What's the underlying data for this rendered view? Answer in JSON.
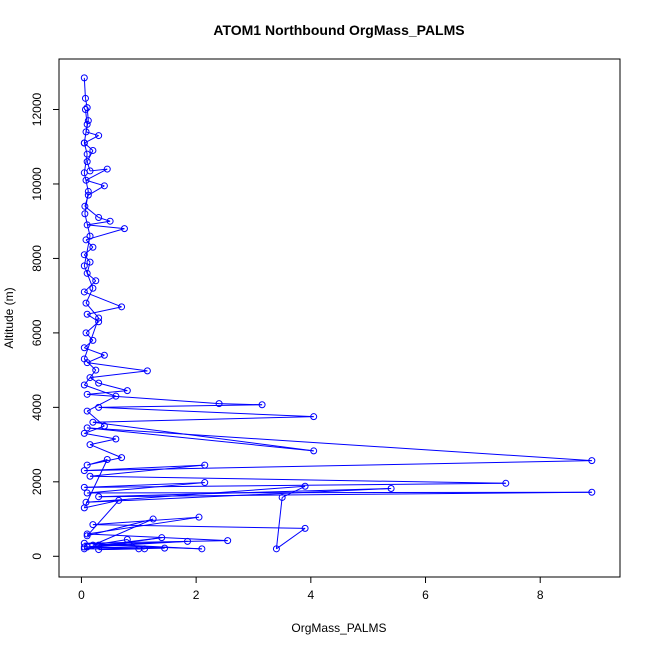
{
  "chart_data": {
    "type": "line",
    "title": "ATOM1 Northbound OrgMass_PALMS",
    "xlabel": "OrgMass_PALMS",
    "ylabel": "Altitude (m)",
    "xlim": [
      0,
      9
    ],
    "ylim": [
      0,
      12800
    ],
    "xticks": [
      0,
      2,
      4,
      6,
      8
    ],
    "yticks": [
      0,
      2000,
      4000,
      6000,
      8000,
      10000,
      12000
    ],
    "grid": false,
    "legend": "none",
    "series_color": "#0000ff",
    "marker": "open-circle",
    "series": [
      {
        "values": [
          [
            0.05,
            12850
          ],
          [
            0.07,
            12300
          ],
          [
            0.1,
            12050
          ],
          [
            0.12,
            11700
          ],
          [
            0.08,
            11400
          ],
          [
            0.3,
            11300
          ],
          [
            0.05,
            11100
          ],
          [
            0.2,
            10900
          ],
          [
            0.1,
            10600
          ],
          [
            0.15,
            10350
          ],
          [
            0.45,
            10400
          ],
          [
            0.08,
            10100
          ],
          [
            0.4,
            9950
          ],
          [
            0.12,
            9700
          ],
          [
            0.06,
            9400
          ],
          [
            0.3,
            9100
          ],
          [
            0.5,
            9000
          ],
          [
            0.1,
            8900
          ],
          [
            0.75,
            8800
          ],
          [
            0.08,
            8500
          ],
          [
            0.2,
            8300
          ],
          [
            0.05,
            8100
          ],
          [
            0.15,
            7900
          ],
          [
            0.1,
            7600
          ],
          [
            0.25,
            7400
          ],
          [
            0.05,
            7100
          ],
          [
            0.7,
            6700
          ],
          [
            0.1,
            6500
          ],
          [
            0.3,
            6300
          ],
          [
            0.08,
            6000
          ],
          [
            0.2,
            5800
          ],
          [
            0.05,
            5600
          ],
          [
            0.4,
            5400
          ],
          [
            0.1,
            5200
          ],
          [
            1.15,
            4980
          ],
          [
            0.15,
            4800
          ],
          [
            0.3,
            4650
          ],
          [
            0.8,
            4450
          ],
          [
            0.1,
            4350
          ],
          [
            2.4,
            4100
          ],
          [
            3.15,
            4070
          ],
          [
            0.3,
            4000
          ],
          [
            4.05,
            3750
          ],
          [
            0.2,
            3600
          ],
          [
            4.05,
            2830
          ],
          [
            0.1,
            3450
          ],
          [
            8.9,
            2570
          ],
          [
            0.05,
            2300
          ],
          [
            2.15,
            2450
          ],
          [
            0.15,
            2150
          ],
          [
            7.4,
            1960
          ],
          [
            0.05,
            1850
          ],
          [
            2.15,
            1980
          ],
          [
            0.1,
            1700
          ],
          [
            8.9,
            1720
          ],
          [
            0.3,
            1600
          ],
          [
            5.4,
            1820
          ],
          [
            0.08,
            1450
          ],
          [
            3.9,
            1880
          ],
          [
            3.5,
            1580
          ],
          [
            3.4,
            200
          ],
          [
            3.9,
            750
          ],
          [
            0.2,
            850
          ],
          [
            2.05,
            1050
          ],
          [
            0.1,
            600
          ],
          [
            2.55,
            420
          ],
          [
            0.05,
            350
          ],
          [
            2.1,
            200
          ],
          [
            0.3,
            300
          ],
          [
            1.85,
            400
          ],
          [
            0.1,
            250
          ],
          [
            1.4,
            500
          ],
          [
            0.05,
            200
          ],
          [
            1.1,
            200
          ],
          [
            0.3,
            180
          ],
          [
            1.45,
            220
          ],
          [
            0.05,
            250
          ],
          [
            1.0,
            200
          ],
          [
            0.8,
            450
          ],
          [
            0.2,
            300
          ],
          [
            1.25,
            1000
          ],
          [
            0.1,
            550
          ],
          [
            0.65,
            1500
          ],
          [
            0.05,
            1300
          ],
          [
            0.45,
            2600
          ],
          [
            0.1,
            2450
          ],
          [
            0.7,
            2650
          ],
          [
            0.15,
            3000
          ],
          [
            0.6,
            3150
          ],
          [
            0.05,
            3300
          ],
          [
            0.4,
            3500
          ],
          [
            0.1,
            3900
          ],
          [
            0.6,
            4300
          ],
          [
            0.05,
            4600
          ],
          [
            0.25,
            5000
          ],
          [
            0.05,
            5300
          ],
          [
            0.3,
            6400
          ],
          [
            0.08,
            6800
          ],
          [
            0.2,
            7200
          ],
          [
            0.05,
            7800
          ],
          [
            0.15,
            8600
          ],
          [
            0.06,
            9200
          ],
          [
            0.12,
            9800
          ],
          [
            0.05,
            10300
          ],
          [
            0.1,
            10800
          ],
          [
            0.05,
            11100
          ],
          [
            0.1,
            11600
          ],
          [
            0.07,
            12000
          ]
        ]
      }
    ]
  }
}
